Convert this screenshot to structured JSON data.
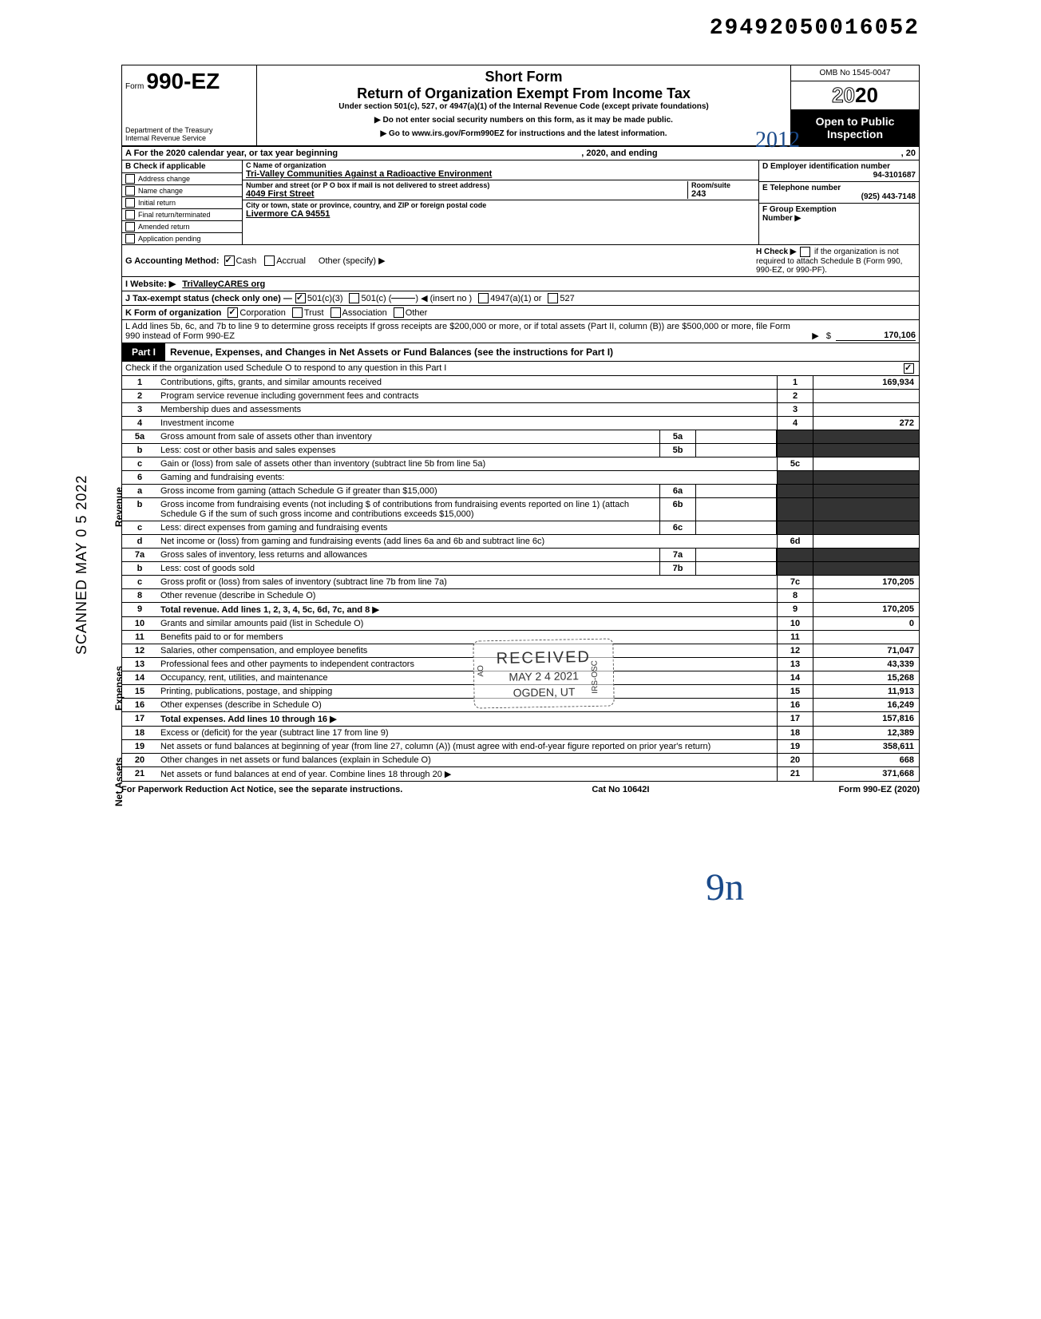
{
  "top_number": "29492050016052",
  "scanned_stamp": "SCANNED MAY 0 5 2022",
  "sidelabels": {
    "revenue": "Revenue",
    "expenses": "Expenses",
    "netassets": "Net Assets"
  },
  "header": {
    "form_label": "Form",
    "form_number": "990-EZ",
    "short_form": "Short Form",
    "title": "Return of Organization Exempt From Income Tax",
    "under": "Under section 501(c), 527, or 4947(a)(1) of the Internal Revenue Code (except private foundations)",
    "arrow1": "▶ Do not enter social security numbers on this form, as it may be made public.",
    "arrow2": "▶ Go to www.irs.gov/Form990EZ for instructions and the latest information.",
    "dept1": "Department of the Treasury",
    "dept2": "Internal Revenue Service",
    "omb": "OMB No 1545-0047",
    "year_outline": "20",
    "year_bold": "20",
    "open1": "Open to Public",
    "open2": "Inspection"
  },
  "row_a": {
    "label": "A For the 2020 calendar year, or tax year beginning",
    "mid": ", 2020, and ending",
    "end": ", 20"
  },
  "section_b": {
    "header": "B  Check if applicable",
    "items": [
      "Address change",
      "Name change",
      "Initial return",
      "Final return/terminated",
      "Amended return",
      "Application pending"
    ]
  },
  "section_c": {
    "name_label": "C  Name of organization",
    "name": "Tri-Valley Communities Against a Radioactive Environment",
    "street_label": "Number and street (or P O  box if mail is not delivered to street address)",
    "street": "4049 First Street",
    "room_label": "Room/suite",
    "room": "243",
    "city_label": "City or town, state or province, country, and ZIP or foreign postal code",
    "city": "Livermore  CA  94551"
  },
  "section_d": {
    "ein_label": "D Employer identification number",
    "ein": "94-3101687",
    "tel_label": "E Telephone number",
    "tel": "(925) 443-7148",
    "group_label": "F Group Exemption",
    "group_label2": "Number ▶"
  },
  "lines_ghi": {
    "g": {
      "label": "G  Accounting Method:",
      "cash": "Cash",
      "accrual": "Accrual",
      "other": "Other (specify) ▶"
    },
    "h": {
      "label": "H  Check ▶",
      "txt": " if the organization is not required to attach Schedule B (Form 990, 990-EZ, or 990-PF)."
    },
    "i": {
      "label": "I   Website: ▶",
      "val": "TriValleyCARES org"
    },
    "j": {
      "label": "J  Tax-exempt status (check only one) —",
      "a": "501(c)(3)",
      "b": "501(c) (",
      "c": ") ◀ (insert no )",
      "d": "4947(a)(1) or",
      "e": "527"
    },
    "k": {
      "label": "K  Form of organization",
      "a": "Corporation",
      "b": "Trust",
      "c": "Association",
      "d": "Other"
    }
  },
  "line_l": "L  Add lines 5b, 6c, and 7b to line 9 to determine gross receipts  If gross receipts are $200,000 or more, or if total assets (Part II, column (B)) are $500,000 or more, file Form 990 instead of Form 990-EZ",
  "line_l_amount": "170,106",
  "part1": {
    "tab": "Part I",
    "title": "Revenue, Expenses, and Changes in Net Assets or Fund Balances (see the instructions for Part I)",
    "check": "Check if the organization used Schedule O to respond to any question in this Part I"
  },
  "rows": [
    {
      "n": "1",
      "d": "Contributions, gifts, grants, and similar amounts received",
      "box": "1",
      "v": "169,934"
    },
    {
      "n": "2",
      "d": "Program service revenue including government fees and contracts",
      "box": "2",
      "v": ""
    },
    {
      "n": "3",
      "d": "Membership dues and assessments",
      "box": "3",
      "v": ""
    },
    {
      "n": "4",
      "d": "Investment income",
      "box": "4",
      "v": "272"
    },
    {
      "n": "5a",
      "d": "Gross amount from sale of assets other than inventory",
      "mid": "5a",
      "shaded": true
    },
    {
      "n": "b",
      "d": "Less: cost or other basis and sales expenses",
      "mid": "5b",
      "shaded": true
    },
    {
      "n": "c",
      "d": "Gain or (loss) from sale of assets other than inventory (subtract line 5b from line 5a)",
      "box": "5c",
      "v": ""
    },
    {
      "n": "6",
      "d": "Gaming and fundraising events:",
      "shaded": true,
      "nobox": true
    },
    {
      "n": "a",
      "d": "Gross income from gaming (attach Schedule G if greater than $15,000)",
      "mid": "6a",
      "shaded": true
    },
    {
      "n": "b",
      "d": "Gross income from fundraising events (not including  $                    of contributions from fundraising events reported on line 1) (attach Schedule G if the sum of such gross income and contributions exceeds $15,000)",
      "mid": "6b",
      "shaded": true
    },
    {
      "n": "c",
      "d": "Less: direct expenses from gaming and fundraising events",
      "mid": "6c",
      "shaded": true
    },
    {
      "n": "d",
      "d": "Net income or (loss) from gaming and fundraising events (add lines 6a and 6b and subtract line 6c)",
      "box": "6d",
      "v": ""
    },
    {
      "n": "7a",
      "d": "Gross sales of inventory, less returns and allowances",
      "mid": "7a",
      "shaded": true
    },
    {
      "n": "b",
      "d": "Less: cost of goods sold",
      "mid": "7b",
      "shaded": true
    },
    {
      "n": "c",
      "d": "Gross profit or (loss) from sales of inventory (subtract line 7b from line 7a)",
      "box": "7c",
      "v": "170,205"
    },
    {
      "n": "8",
      "d": "Other revenue (describe in Schedule O)",
      "box": "8",
      "v": ""
    },
    {
      "n": "9",
      "d": "Total revenue. Add lines 1, 2, 3, 4, 5c, 6d, 7c, and 8",
      "box": "9",
      "v": "170,205",
      "arrow": true,
      "bold": true
    },
    {
      "n": "10",
      "d": "Grants and similar amounts paid (list in Schedule O)",
      "box": "10",
      "v": "0"
    },
    {
      "n": "11",
      "d": "Benefits paid to or for members",
      "box": "11",
      "v": ""
    },
    {
      "n": "12",
      "d": "Salaries, other compensation, and employee benefits",
      "box": "12",
      "v": "71,047"
    },
    {
      "n": "13",
      "d": "Professional fees and other payments to independent contractors",
      "box": "13",
      "v": "43,339"
    },
    {
      "n": "14",
      "d": "Occupancy, rent, utilities, and maintenance",
      "box": "14",
      "v": "15,268"
    },
    {
      "n": "15",
      "d": "Printing, publications, postage, and shipping",
      "box": "15",
      "v": "11,913"
    },
    {
      "n": "16",
      "d": "Other expenses (describe in Schedule O)",
      "box": "16",
      "v": "16,249"
    },
    {
      "n": "17",
      "d": "Total expenses. Add lines 10 through 16",
      "box": "17",
      "v": "157,816",
      "arrow": true,
      "bold": true
    },
    {
      "n": "18",
      "d": "Excess or (deficit) for the year (subtract line 17 from line 9)",
      "box": "18",
      "v": "12,389"
    },
    {
      "n": "19",
      "d": "Net assets or fund balances at beginning of year (from line 27, column (A)) (must agree with end-of-year figure reported on prior year's return)",
      "box": "19",
      "v": "358,611"
    },
    {
      "n": "20",
      "d": "Other changes in net assets or fund balances (explain in Schedule O)",
      "box": "20",
      "v": "668"
    },
    {
      "n": "21",
      "d": "Net assets or fund balances at end of year. Combine lines 18 through 20",
      "box": "21",
      "v": "371,668",
      "arrow": true
    }
  ],
  "footer": {
    "left": "For Paperwork Reduction Act Notice, see the separate instructions.",
    "mid": "Cat  No  10642I",
    "right": "Form 990-EZ (2020)"
  },
  "stamp": {
    "l1": "RECEIVED",
    "l2": "MAY 2 4 2021",
    "l3": "OGDEN, UT",
    "side_left": "AO",
    "side_right": "IRS-OSC"
  },
  "handwritten": {
    "top_right": "2012",
    "bottom": "9n"
  }
}
